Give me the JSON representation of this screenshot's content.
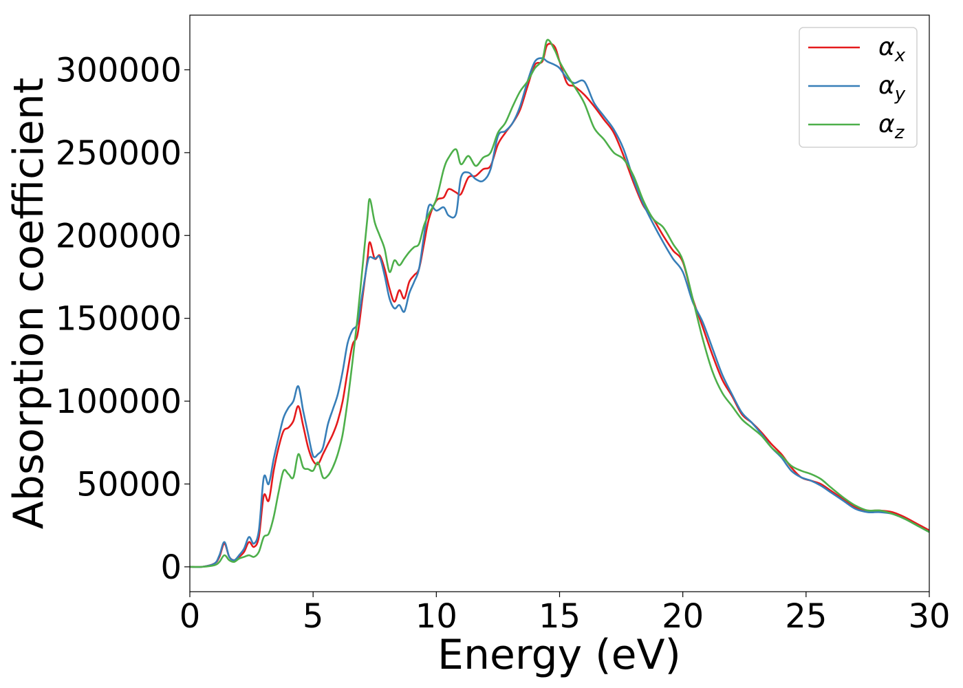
{
  "chart_data": {
    "type": "line",
    "title": "",
    "xlabel": "Energy (eV)",
    "ylabel": "Absorption coefficient",
    "xlim": [
      0,
      30
    ],
    "ylim": [
      -15000,
      333000
    ],
    "xticks": [
      0,
      5,
      10,
      15,
      20,
      25,
      30
    ],
    "yticks": [
      0,
      50000,
      100000,
      150000,
      200000,
      250000,
      300000
    ],
    "xtick_labels": [
      "0",
      "5",
      "10",
      "15",
      "20",
      "25",
      "30"
    ],
    "ytick_labels": [
      "0",
      "50000",
      "100000",
      "150000",
      "200000",
      "250000",
      "300000"
    ],
    "grid": false,
    "legend_position": "top-right",
    "series": [
      {
        "name": "α",
        "subscript": "x",
        "color": "#e41a1c",
        "x": [
          0,
          0.5,
          1.0,
          1.2,
          1.4,
          1.6,
          1.8,
          2.0,
          2.2,
          2.4,
          2.6,
          2.8,
          3.0,
          3.2,
          3.4,
          3.6,
          3.8,
          4.0,
          4.2,
          4.4,
          4.6,
          4.8,
          5.0,
          5.2,
          5.4,
          5.6,
          5.8,
          6.0,
          6.2,
          6.4,
          6.6,
          6.8,
          7.0,
          7.2,
          7.3,
          7.5,
          7.7,
          7.9,
          8.1,
          8.3,
          8.5,
          8.7,
          8.9,
          9.1,
          9.3,
          9.5,
          9.7,
          10.0,
          10.3,
          10.5,
          10.8,
          11.0,
          11.3,
          11.6,
          11.9,
          12.2,
          12.5,
          12.8,
          13.1,
          13.4,
          13.7,
          14.0,
          14.3,
          14.5,
          14.8,
          15.0,
          15.3,
          15.6,
          16.0,
          16.4,
          16.8,
          17.2,
          17.6,
          18.0,
          18.4,
          18.8,
          19.2,
          19.6,
          20.0,
          20.4,
          20.8,
          21.2,
          21.6,
          22.0,
          22.4,
          22.8,
          23.2,
          23.6,
          24.0,
          24.4,
          24.8,
          25.2,
          25.6,
          26.0,
          26.5,
          27.0,
          27.5,
          28.0,
          28.5,
          29.0,
          29.5,
          30.0
        ],
        "values": [
          0,
          0,
          2000,
          6000,
          14000,
          6000,
          4000,
          6000,
          9000,
          15000,
          12000,
          18000,
          43000,
          40000,
          58000,
          72000,
          82000,
          84000,
          88000,
          97000,
          85000,
          72000,
          64000,
          62000,
          68000,
          74000,
          80000,
          88000,
          100000,
          118000,
          134000,
          140000,
          162000,
          185000,
          196000,
          186000,
          188000,
          180000,
          168000,
          160000,
          167000,
          162000,
          172000,
          176000,
          180000,
          195000,
          210000,
          221000,
          223000,
          228000,
          226000,
          225000,
          235000,
          236000,
          240000,
          242000,
          255000,
          262000,
          268000,
          276000,
          290000,
          303000,
          305000,
          315000,
          314000,
          305000,
          292000,
          290000,
          285000,
          278000,
          270000,
          262000,
          248000,
          232000,
          218000,
          210000,
          200000,
          191000,
          184000,
          162000,
          145000,
          128000,
          113000,
          103000,
          92000,
          87000,
          81000,
          74000,
          68000,
          60000,
          54000,
          52000,
          50000,
          46000,
          41000,
          36000,
          34000,
          34000,
          33000,
          30000,
          26000,
          22000
        ]
      },
      {
        "name": "α",
        "subscript": "y",
        "color": "#377eb8",
        "x": [
          0,
          0.5,
          1.0,
          1.2,
          1.4,
          1.6,
          1.8,
          2.0,
          2.2,
          2.4,
          2.6,
          2.8,
          3.0,
          3.2,
          3.4,
          3.6,
          3.8,
          4.0,
          4.2,
          4.4,
          4.6,
          4.8,
          5.0,
          5.2,
          5.4,
          5.6,
          5.8,
          6.0,
          6.2,
          6.4,
          6.6,
          6.8,
          7.0,
          7.2,
          7.3,
          7.5,
          7.7,
          7.9,
          8.1,
          8.3,
          8.5,
          8.7,
          8.9,
          9.1,
          9.3,
          9.5,
          9.7,
          10.0,
          10.3,
          10.5,
          10.8,
          11.0,
          11.3,
          11.6,
          11.9,
          12.2,
          12.5,
          12.8,
          13.1,
          13.4,
          13.7,
          14.0,
          14.3,
          14.5,
          14.8,
          15.0,
          15.3,
          15.6,
          16.0,
          16.4,
          16.8,
          17.2,
          17.6,
          18.0,
          18.4,
          18.8,
          19.2,
          19.6,
          20.0,
          20.4,
          20.8,
          21.2,
          21.6,
          22.0,
          22.4,
          22.8,
          23.2,
          23.6,
          24.0,
          24.4,
          24.8,
          25.2,
          25.6,
          26.0,
          26.5,
          27.0,
          27.5,
          28.0,
          28.5,
          29.0,
          29.5,
          30.0
        ],
        "values": [
          0,
          0,
          2000,
          7000,
          15000,
          6000,
          4000,
          7000,
          11000,
          18000,
          14000,
          22000,
          54000,
          50000,
          65000,
          78000,
          90000,
          96000,
          100000,
          109000,
          94000,
          80000,
          67000,
          68000,
          72000,
          86000,
          95000,
          104000,
          118000,
          135000,
          143000,
          147000,
          165000,
          183000,
          187000,
          186000,
          187000,
          176000,
          162000,
          156000,
          158000,
          154000,
          165000,
          172000,
          180000,
          200000,
          218000,
          215000,
          217000,
          212000,
          213000,
          235000,
          238000,
          234000,
          233000,
          240000,
          260000,
          263000,
          268000,
          278000,
          293000,
          305000,
          307000,
          305000,
          303000,
          301000,
          295000,
          292000,
          293000,
          280000,
          272000,
          264000,
          252000,
          234000,
          219000,
          207000,
          196000,
          186000,
          178000,
          160000,
          148000,
          132000,
          116000,
          104000,
          93000,
          87000,
          80000,
          72000,
          66000,
          58000,
          54000,
          52000,
          49000,
          45000,
          40000,
          35000,
          33000,
          33000,
          32000,
          29000,
          25000,
          21000
        ]
      },
      {
        "name": "α",
        "subscript": "z",
        "color": "#4daf4a",
        "x": [
          0,
          0.5,
          1.0,
          1.2,
          1.4,
          1.6,
          1.8,
          2.0,
          2.2,
          2.4,
          2.6,
          2.8,
          3.0,
          3.2,
          3.4,
          3.6,
          3.8,
          4.0,
          4.2,
          4.4,
          4.6,
          4.8,
          5.0,
          5.2,
          5.4,
          5.6,
          5.8,
          6.0,
          6.2,
          6.4,
          6.6,
          6.8,
          7.0,
          7.2,
          7.3,
          7.5,
          7.7,
          7.9,
          8.1,
          8.3,
          8.5,
          8.7,
          8.9,
          9.1,
          9.3,
          9.5,
          9.7,
          10.0,
          10.3,
          10.5,
          10.8,
          11.0,
          11.3,
          11.6,
          11.9,
          12.2,
          12.5,
          12.8,
          13.1,
          13.4,
          13.7,
          14.0,
          14.3,
          14.5,
          14.8,
          15.0,
          15.3,
          15.6,
          16.0,
          16.4,
          16.8,
          17.2,
          17.6,
          18.0,
          18.4,
          18.8,
          19.2,
          19.6,
          20.0,
          20.4,
          20.8,
          21.2,
          21.6,
          22.0,
          22.4,
          22.8,
          23.2,
          23.6,
          24.0,
          24.4,
          24.8,
          25.2,
          25.6,
          26.0,
          26.5,
          27.0,
          27.5,
          28.0,
          28.5,
          29.0,
          29.5,
          30.0
        ],
        "values": [
          0,
          0,
          1000,
          3000,
          7000,
          4000,
          3000,
          5000,
          6000,
          7000,
          6000,
          9000,
          18000,
          20000,
          30000,
          45000,
          58000,
          56000,
          54000,
          68000,
          60000,
          59000,
          58000,
          63000,
          54000,
          55000,
          60000,
          68000,
          80000,
          100000,
          124000,
          150000,
          180000,
          210000,
          222000,
          208000,
          200000,
          192000,
          178000,
          185000,
          182000,
          186000,
          190000,
          193000,
          195000,
          206000,
          213000,
          222000,
          240000,
          247000,
          252000,
          243000,
          248000,
          242000,
          247000,
          250000,
          262000,
          268000,
          278000,
          287000,
          293000,
          301000,
          306000,
          318000,
          312000,
          305000,
          297000,
          290000,
          280000,
          265000,
          258000,
          250000,
          246000,
          236000,
          221000,
          210000,
          205000,
          195000,
          185000,
          162000,
          138000,
          118000,
          105000,
          97000,
          89000,
          84000,
          79000,
          72000,
          67000,
          61000,
          58000,
          56000,
          53000,
          48000,
          42000,
          37000,
          34000,
          34000,
          32000,
          29000,
          25000,
          21000
        ]
      }
    ]
  }
}
